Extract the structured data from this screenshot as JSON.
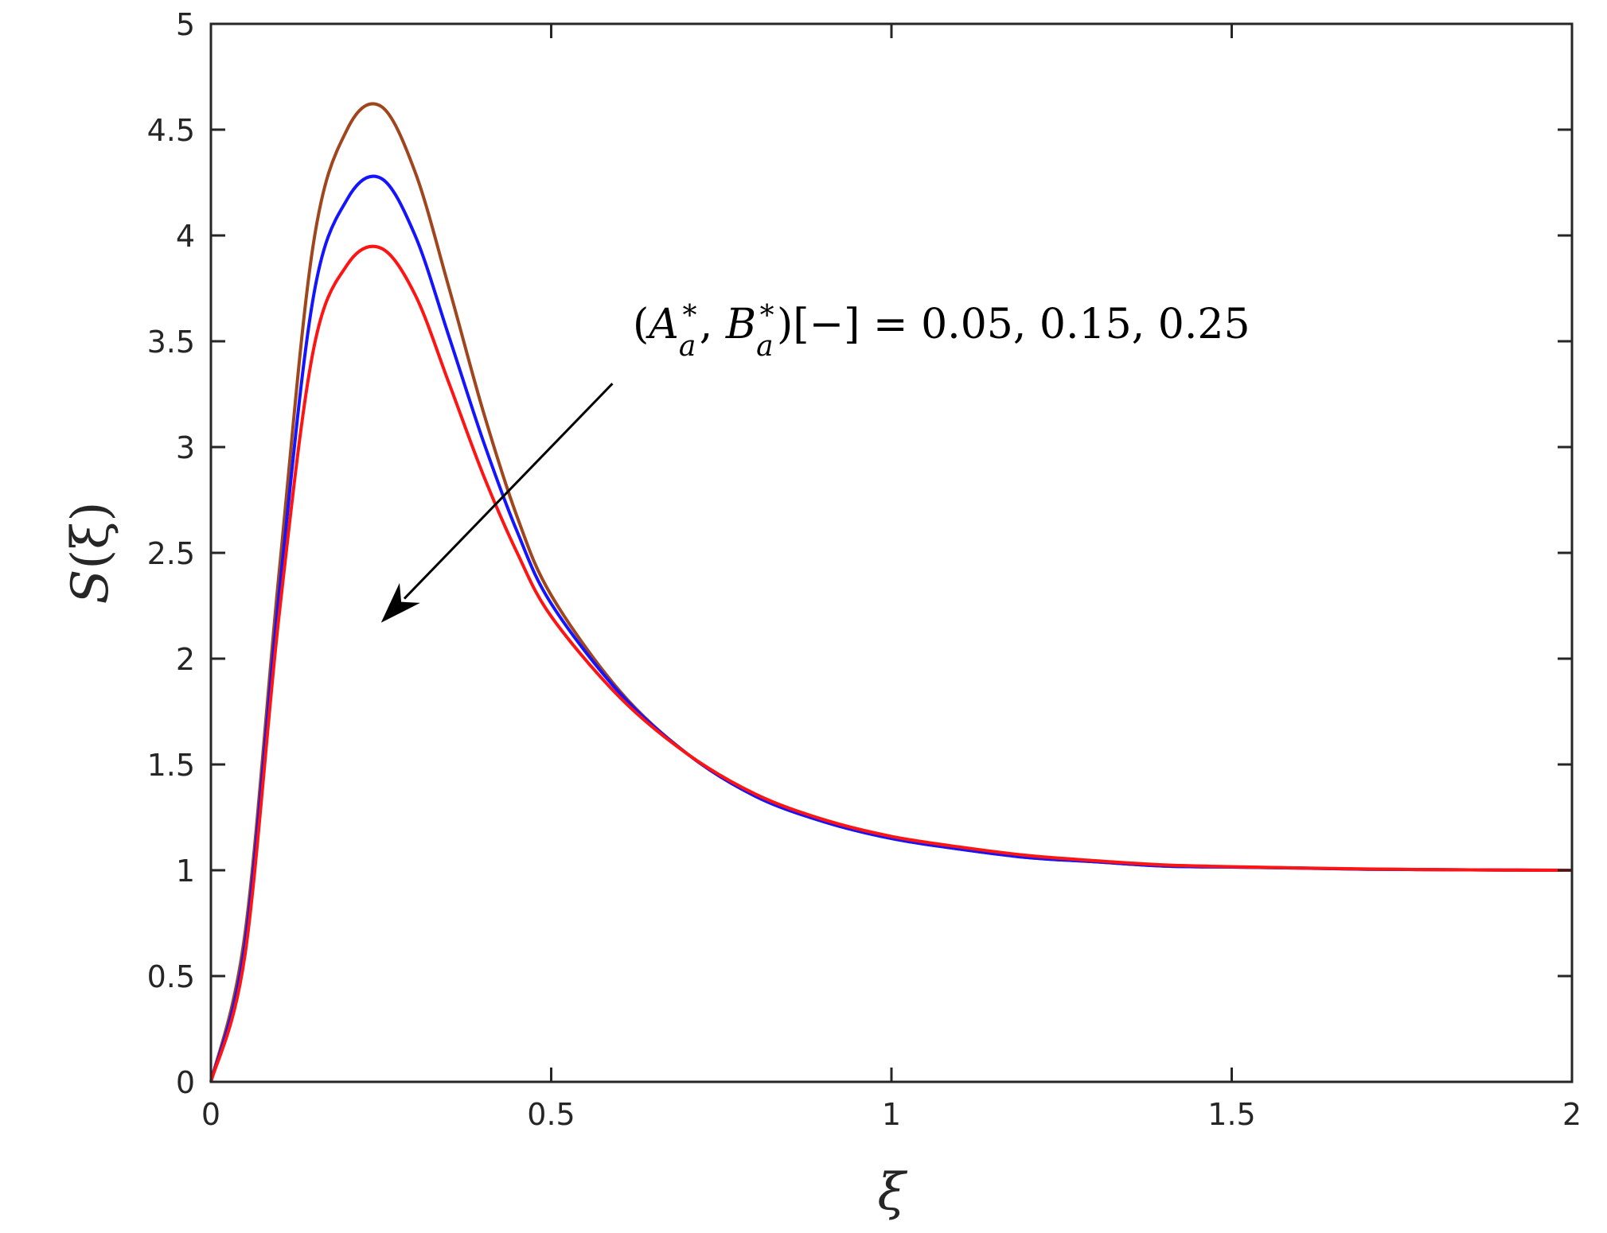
{
  "chart_data": {
    "type": "line",
    "title": "",
    "xlabel": "ξ",
    "ylabel_main": "S",
    "ylabel_rest": "(ξ)",
    "xlim": [
      0,
      2
    ],
    "ylim": [
      0,
      5
    ],
    "grid": false,
    "x_ticks": [
      0,
      0.5,
      1,
      1.5,
      2
    ],
    "x_tick_labels": [
      "0",
      "0.5",
      "1",
      "1.5",
      "2"
    ],
    "y_ticks": [
      0,
      0.5,
      1,
      1.5,
      2,
      2.5,
      3,
      3.5,
      4,
      4.5,
      5
    ],
    "y_tick_labels": [
      "0",
      "0.5",
      "1",
      "1.5",
      "2",
      "2.5",
      "3",
      "3.5",
      "4",
      "4.5",
      "5"
    ],
    "annotation": {
      "open": "(",
      "a1": "A",
      "sub1": "a",
      "sup1": "∗",
      "comma": ", ",
      "a2": "B",
      "sub2": "a",
      "sup2": "∗",
      "rest": ")[−] = 0.05, 0.15, 0.25",
      "arrow_from": [
        0.59,
        3.3
      ],
      "arrow_to": [
        0.25,
        2.17
      ]
    },
    "series": [
      {
        "color": "#a0461e",
        "x": [
          0,
          0.05,
          0.1,
          0.15,
          0.2,
          0.25,
          0.3,
          0.35,
          0.4,
          0.45,
          0.5,
          0.6,
          0.7,
          0.8,
          0.9,
          1.0,
          1.1,
          1.2,
          1.3,
          1.4,
          1.5,
          1.6,
          1.7,
          1.8,
          1.9,
          2.0
        ],
        "y": [
          0,
          0.7,
          2.4,
          3.95,
          4.5,
          4.61,
          4.3,
          3.75,
          3.17,
          2.67,
          2.3,
          1.85,
          1.55,
          1.35,
          1.23,
          1.15,
          1.1,
          1.06,
          1.04,
          1.02,
          1.015,
          1.01,
          1.005,
          1.003,
          1.001,
          1.0
        ]
      },
      {
        "color": "#1414ff",
        "x": [
          0,
          0.05,
          0.1,
          0.15,
          0.2,
          0.25,
          0.3,
          0.35,
          0.4,
          0.45,
          0.5,
          0.6,
          0.7,
          0.8,
          0.9,
          1.0,
          1.1,
          1.2,
          1.3,
          1.4,
          1.5,
          1.6,
          1.7,
          1.8,
          1.9,
          2.0
        ],
        "y": [
          0,
          0.65,
          2.3,
          3.7,
          4.17,
          4.27,
          4.0,
          3.52,
          3.03,
          2.6,
          2.26,
          1.84,
          1.55,
          1.35,
          1.23,
          1.15,
          1.1,
          1.06,
          1.04,
          1.02,
          1.015,
          1.01,
          1.005,
          1.003,
          1.001,
          1.0
        ]
      },
      {
        "color": "#ff1414",
        "x": [
          0,
          0.05,
          0.1,
          0.15,
          0.2,
          0.25,
          0.3,
          0.35,
          0.4,
          0.45,
          0.5,
          0.6,
          0.7,
          0.8,
          0.9,
          1.0,
          1.1,
          1.2,
          1.3,
          1.4,
          1.5,
          1.6,
          1.7,
          1.8,
          1.9,
          2.0
        ],
        "y": [
          0,
          0.6,
          2.2,
          3.45,
          3.86,
          3.94,
          3.72,
          3.3,
          2.87,
          2.5,
          2.2,
          1.82,
          1.55,
          1.36,
          1.24,
          1.16,
          1.11,
          1.07,
          1.045,
          1.025,
          1.017,
          1.011,
          1.006,
          1.003,
          1.001,
          1.0
        ]
      }
    ]
  }
}
